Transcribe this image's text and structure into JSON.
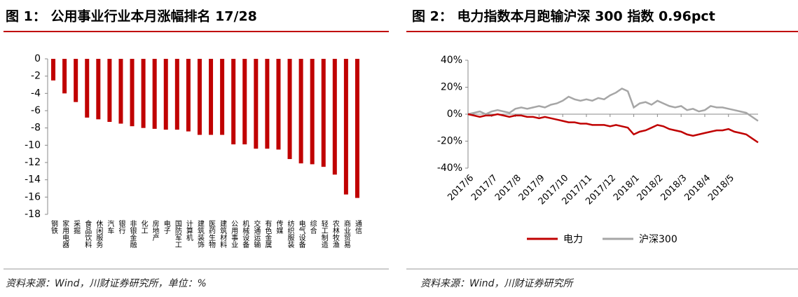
{
  "chart_data": [
    {
      "type": "bar",
      "title": "图 1： 公用事业行业本月涨幅排名 17/28",
      "source": "资料来源：Wind，川财证券研究所，单位：%",
      "categories": [
        "钢铁",
        "家用电器",
        "采掘",
        "食品饮料",
        "休闲服务",
        "汽车",
        "银行",
        "非银金融",
        "化工",
        "房地产",
        "电子",
        "国防军工",
        "计算机",
        "建筑装饰",
        "医药生物",
        "建筑材料",
        "公用事业",
        "机械设备",
        "交通运输",
        "有色金属",
        "传媒",
        "纺织服装",
        "电气设备",
        "综合",
        "轻工制造",
        "农林牧渔",
        "商业贸易",
        "通信"
      ],
      "values": [
        -2.5,
        -4.0,
        -5.0,
        -6.8,
        -7.0,
        -7.3,
        -7.5,
        -7.8,
        -8.0,
        -8.1,
        -8.2,
        -8.2,
        -8.4,
        -8.8,
        -8.8,
        -8.8,
        -9.9,
        -9.9,
        -10.4,
        -10.4,
        -10.5,
        -11.6,
        -12.1,
        -12.2,
        -12.5,
        -13.4,
        -15.7,
        -16.1
      ],
      "color": "#c00000",
      "ylim": [
        -18,
        0
      ],
      "yticks": [
        0,
        -2,
        -4,
        -6,
        -8,
        -10,
        -12,
        -14,
        -16,
        -18
      ]
    },
    {
      "type": "line",
      "title": "图 2： 电力指数本月跑输沪深 300 指数 0.96pct",
      "source": "资料来源：Wind，川财证券研究所",
      "categories": [
        "2017/6",
        null,
        null,
        null,
        "2017/7",
        null,
        null,
        null,
        "2017/8",
        null,
        null,
        null,
        "2017/9",
        null,
        null,
        null,
        "2017/10",
        null,
        null,
        null,
        "2017/11",
        null,
        null,
        null,
        "2017/12",
        null,
        null,
        null,
        "2018/1",
        null,
        null,
        null,
        "2018/2",
        null,
        null,
        null,
        "2018/3",
        null,
        null,
        null,
        "2018/4",
        null,
        null,
        null,
        "2018/5",
        null,
        null,
        null,
        null,
        null
      ],
      "series": [
        {
          "name": "电力",
          "color": "#c00000",
          "values": [
            0,
            -1,
            -2,
            -1,
            -1,
            0,
            -1,
            -2,
            -1,
            -1,
            -2,
            -2,
            -3,
            -2,
            -3,
            -4,
            -5,
            -6,
            -6,
            -7,
            -7,
            -8,
            -8,
            -8,
            -9,
            -8,
            -9,
            -10,
            -15,
            -13,
            -12,
            -10,
            -8,
            -9,
            -11,
            -12,
            -13,
            -15,
            -16,
            -15,
            -14,
            -13,
            -12,
            -12,
            -11,
            -13,
            -14,
            -15,
            -18,
            -21
          ]
        },
        {
          "name": "沪深300",
          "color": "#a6a6a6",
          "values": [
            0,
            1,
            2,
            0,
            2,
            3,
            2,
            1,
            4,
            5,
            4,
            5,
            6,
            5,
            7,
            8,
            10,
            13,
            11,
            10,
            11,
            10,
            12,
            11,
            14,
            16,
            19,
            17,
            5,
            8,
            9,
            7,
            10,
            8,
            6,
            5,
            6,
            3,
            4,
            2,
            3,
            6,
            5,
            5,
            4,
            3,
            2,
            1,
            -2,
            -5
          ]
        }
      ],
      "ylim": [
        -40,
        40
      ],
      "yticks": [
        {
          "value": -40,
          "label": "-40%"
        },
        {
          "value": -20,
          "label": "-20%"
        },
        {
          "value": 0,
          "label": "0%"
        },
        {
          "value": 20,
          "label": "20%"
        },
        {
          "value": 40,
          "label": "40%"
        }
      ],
      "legend": "bottom"
    }
  ]
}
